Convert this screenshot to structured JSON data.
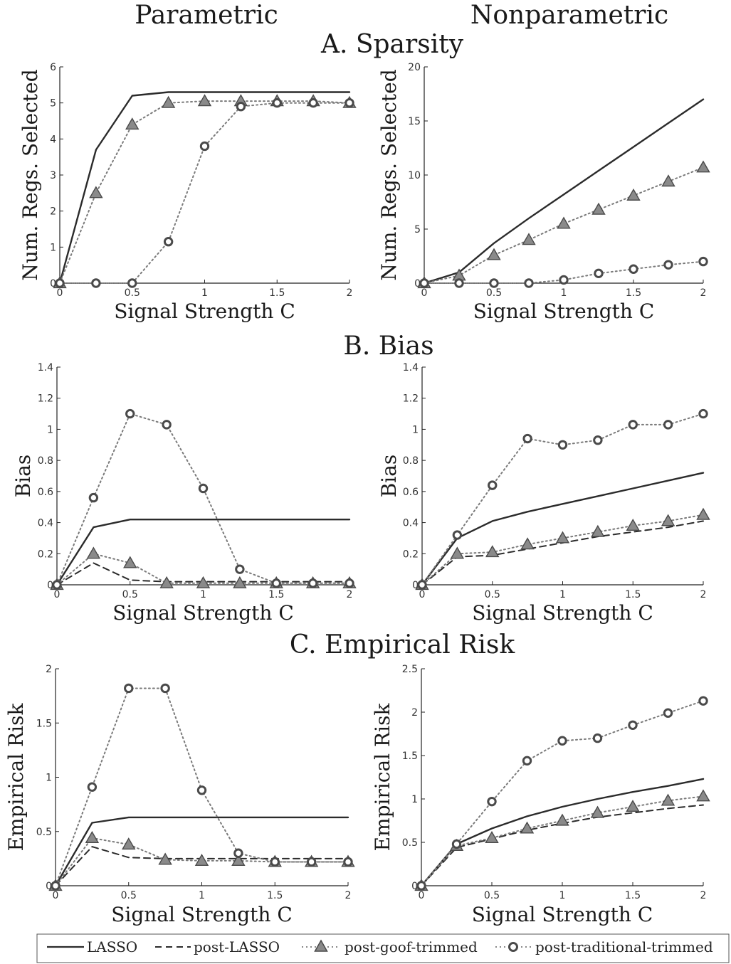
{
  "column_titles": [
    "Parametric",
    "Nonparametric"
  ],
  "section_titles": [
    "A. Sparsity",
    "B. Bias",
    "C. Empirical Risk"
  ],
  "colors": {
    "lasso": "#2b2b2b",
    "post_lasso": "#2b2b2b",
    "goof": "#7a7a7a",
    "traditional": "#7a7a7a",
    "marker_fill": "#8a8a8a",
    "marker_edge": "#4a4a4a"
  },
  "legend": {
    "entries": [
      {
        "label": "LASSO",
        "style": "solid"
      },
      {
        "label": "post-LASSO",
        "style": "dashed"
      },
      {
        "label": "post-goof-trimmed",
        "style": "dotted-triangle"
      },
      {
        "label": "post-traditional-trimmed",
        "style": "dotted-circle"
      }
    ]
  },
  "chart_data": [
    {
      "type": "line",
      "panel": "A. Sparsity - Parametric",
      "xlabel": "Signal Strength C",
      "ylabel": "Num. Regs. Selected",
      "xlim": [
        0,
        2
      ],
      "ylim": [
        0,
        6
      ],
      "xticks": [
        "0",
        "0.5",
        "1",
        "1.5",
        "2"
      ],
      "yticks": [
        "0",
        "1",
        "2",
        "3",
        "4",
        "5",
        "6"
      ],
      "series": [
        {
          "name": "LASSO",
          "x": [
            0,
            0.25,
            0.5,
            0.75,
            1,
            1.25,
            1.5,
            1.75,
            2
          ],
          "values": [
            0,
            3.7,
            5.2,
            5.3,
            5.3,
            5.3,
            5.3,
            5.3,
            5.3
          ]
        },
        {
          "name": "post-goof-trimmed",
          "x": [
            0,
            0.25,
            0.5,
            0.75,
            1,
            1.25,
            1.5,
            1.75,
            2
          ],
          "values": [
            0,
            2.5,
            4.4,
            5.0,
            5.05,
            5.05,
            5.05,
            5.05,
            5.0
          ]
        },
        {
          "name": "post-traditional-trimmed",
          "x": [
            0,
            0.25,
            0.5,
            0.75,
            1,
            1.25,
            1.5,
            1.75,
            2
          ],
          "values": [
            0,
            0,
            0,
            1.15,
            3.8,
            4.9,
            5.0,
            5.0,
            5.0
          ]
        }
      ]
    },
    {
      "type": "line",
      "panel": "A. Sparsity - Nonparametric",
      "xlabel": "Signal Strength C",
      "ylabel": "Num. Regs. Selected",
      "xlim": [
        0,
        2
      ],
      "ylim": [
        0,
        20
      ],
      "xticks": [
        "0",
        "0.5",
        "1",
        "1.5",
        "2"
      ],
      "yticks": [
        "0",
        "5",
        "10",
        "15",
        "20"
      ],
      "series": [
        {
          "name": "LASSO",
          "x": [
            0,
            0.25,
            0.5,
            0.75,
            1,
            1.25,
            1.5,
            1.75,
            2
          ],
          "values": [
            0,
            1.0,
            3.7,
            6.0,
            8.2,
            10.4,
            12.6,
            14.8,
            17.0
          ]
        },
        {
          "name": "post-goof-trimmed",
          "x": [
            0,
            0.25,
            0.5,
            0.75,
            1,
            1.25,
            1.5,
            1.75,
            2
          ],
          "values": [
            0,
            0.7,
            2.6,
            4.0,
            5.5,
            6.8,
            8.1,
            9.4,
            10.7
          ]
        },
        {
          "name": "post-traditional-trimmed",
          "x": [
            0,
            0.25,
            0.5,
            0.75,
            1,
            1.25,
            1.5,
            1.75,
            2
          ],
          "values": [
            0,
            0,
            0,
            0,
            0.3,
            0.9,
            1.3,
            1.7,
            2.0
          ]
        }
      ]
    },
    {
      "type": "line",
      "panel": "B. Bias - Parametric",
      "xlabel": "Signal Strength C",
      "ylabel": "Bias",
      "xlim": [
        0,
        2
      ],
      "ylim": [
        0,
        1.4
      ],
      "xticks": [
        "0",
        "0.5",
        "1",
        "1.5",
        "2"
      ],
      "yticks": [
        "0",
        "0.2",
        "0.4",
        "0.6",
        "0.8",
        "1",
        "1.2",
        "1.4"
      ],
      "series": [
        {
          "name": "LASSO",
          "x": [
            0,
            0.25,
            0.5,
            0.75,
            1,
            1.25,
            1.5,
            1.75,
            2
          ],
          "values": [
            0,
            0.37,
            0.42,
            0.42,
            0.42,
            0.42,
            0.42,
            0.42,
            0.42
          ]
        },
        {
          "name": "post-LASSO",
          "x": [
            0,
            0.25,
            0.5,
            0.75,
            1,
            1.25,
            1.5,
            1.75,
            2
          ],
          "values": [
            0,
            0.14,
            0.03,
            0.02,
            0.02,
            0.02,
            0.02,
            0.02,
            0.02
          ]
        },
        {
          "name": "post-goof-trimmed",
          "x": [
            0,
            0.25,
            0.5,
            0.75,
            1,
            1.25,
            1.5,
            1.75,
            2
          ],
          "values": [
            0,
            0.2,
            0.14,
            0.01,
            0.01,
            0.01,
            0.01,
            0.01,
            0.01
          ]
        },
        {
          "name": "post-traditional-trimmed",
          "x": [
            0,
            0.25,
            0.5,
            0.75,
            1,
            1.25,
            1.5,
            1.75,
            2
          ],
          "values": [
            0,
            0.56,
            1.1,
            1.03,
            0.62,
            0.1,
            0.01,
            0.01,
            0.01
          ]
        }
      ]
    },
    {
      "type": "line",
      "panel": "B. Bias - Nonparametric",
      "xlabel": "Signal Strength C",
      "ylabel": "Bias",
      "xlim": [
        0,
        2
      ],
      "ylim": [
        0,
        1.4
      ],
      "xticks": [
        "0",
        "0.5",
        "1",
        "1.5",
        "2"
      ],
      "yticks": [
        "0",
        "0.2",
        "0.4",
        "0.6",
        "0.8",
        "1",
        "1.2",
        "1.4"
      ],
      "series": [
        {
          "name": "LASSO",
          "x": [
            0,
            0.25,
            0.5,
            0.75,
            1,
            1.25,
            1.5,
            1.75,
            2
          ],
          "values": [
            0,
            0.3,
            0.41,
            0.47,
            0.52,
            0.57,
            0.62,
            0.67,
            0.72
          ]
        },
        {
          "name": "post-LASSO",
          "x": [
            0,
            0.25,
            0.5,
            0.75,
            1,
            1.25,
            1.5,
            1.75,
            2
          ],
          "values": [
            0,
            0.18,
            0.19,
            0.23,
            0.27,
            0.31,
            0.34,
            0.37,
            0.41
          ]
        },
        {
          "name": "post-goof-trimmed",
          "x": [
            0,
            0.25,
            0.5,
            0.75,
            1,
            1.25,
            1.5,
            1.75,
            2
          ],
          "values": [
            0,
            0.2,
            0.21,
            0.26,
            0.3,
            0.34,
            0.38,
            0.41,
            0.45
          ]
        },
        {
          "name": "post-traditional-trimmed",
          "x": [
            0,
            0.25,
            0.5,
            0.75,
            1,
            1.25,
            1.5,
            1.75,
            2
          ],
          "values": [
            0,
            0.32,
            0.64,
            0.94,
            0.9,
            0.93,
            1.03,
            1.03,
            1.1
          ]
        }
      ]
    },
    {
      "type": "line",
      "panel": "C. Empirical Risk - Parametric",
      "xlabel": "Signal Strength C",
      "ylabel": "Empirical Risk",
      "xlim": [
        0,
        2
      ],
      "ylim": [
        0,
        2
      ],
      "xticks": [
        "0",
        "0.5",
        "1",
        "1.5",
        "2"
      ],
      "yticks": [
        "0",
        "0.5",
        "1",
        "1.5",
        "2"
      ],
      "series": [
        {
          "name": "LASSO",
          "x": [
            0,
            0.25,
            0.5,
            0.75,
            1,
            1.25,
            1.5,
            1.75,
            2
          ],
          "values": [
            0,
            0.58,
            0.63,
            0.63,
            0.63,
            0.63,
            0.63,
            0.63,
            0.63
          ]
        },
        {
          "name": "post-LASSO",
          "x": [
            0,
            0.25,
            0.5,
            0.75,
            1,
            1.25,
            1.5,
            1.75,
            2
          ],
          "values": [
            0,
            0.36,
            0.26,
            0.25,
            0.25,
            0.25,
            0.25,
            0.25,
            0.25
          ]
        },
        {
          "name": "post-goof-trimmed",
          "x": [
            0,
            0.25,
            0.5,
            0.75,
            1,
            1.25,
            1.5,
            1.75,
            2
          ],
          "values": [
            0,
            0.44,
            0.38,
            0.24,
            0.23,
            0.23,
            0.22,
            0.22,
            0.22
          ]
        },
        {
          "name": "post-traditional-trimmed",
          "x": [
            0,
            0.25,
            0.5,
            0.75,
            1,
            1.25,
            1.5,
            1.75,
            2
          ],
          "values": [
            0,
            0.91,
            1.82,
            1.82,
            0.88,
            0.3,
            0.22,
            0.22,
            0.22
          ]
        }
      ]
    },
    {
      "type": "line",
      "panel": "C. Empirical Risk - Nonparametric",
      "xlabel": "Signal Strength C",
      "ylabel": "Empirical Risk",
      "xlim": [
        0,
        2
      ],
      "ylim": [
        0,
        2.5
      ],
      "xticks": [
        "0",
        "0.5",
        "1",
        "1.5",
        "2"
      ],
      "yticks": [
        "0",
        "0.5",
        "1",
        "1.5",
        "2",
        "2.5"
      ],
      "series": [
        {
          "name": "LASSO",
          "x": [
            0,
            0.25,
            0.5,
            0.75,
            1,
            1.25,
            1.5,
            1.75,
            2
          ],
          "values": [
            0,
            0.48,
            0.66,
            0.8,
            0.91,
            1.0,
            1.08,
            1.15,
            1.23
          ]
        },
        {
          "name": "post-LASSO",
          "x": [
            0,
            0.25,
            0.5,
            0.75,
            1,
            1.25,
            1.5,
            1.75,
            2
          ],
          "values": [
            0,
            0.44,
            0.54,
            0.64,
            0.72,
            0.79,
            0.84,
            0.89,
            0.93
          ]
        },
        {
          "name": "post-goof-trimmed",
          "x": [
            0,
            0.25,
            0.5,
            0.75,
            1,
            1.25,
            1.5,
            1.75,
            2
          ],
          "values": [
            0,
            0.46,
            0.55,
            0.66,
            0.75,
            0.84,
            0.91,
            0.98,
            1.03
          ]
        },
        {
          "name": "post-traditional-trimmed",
          "x": [
            0,
            0.25,
            0.5,
            0.75,
            1,
            1.25,
            1.5,
            1.75,
            2
          ],
          "values": [
            0,
            0.48,
            0.97,
            1.44,
            1.67,
            1.7,
            1.85,
            1.99,
            2.13
          ]
        }
      ]
    }
  ]
}
